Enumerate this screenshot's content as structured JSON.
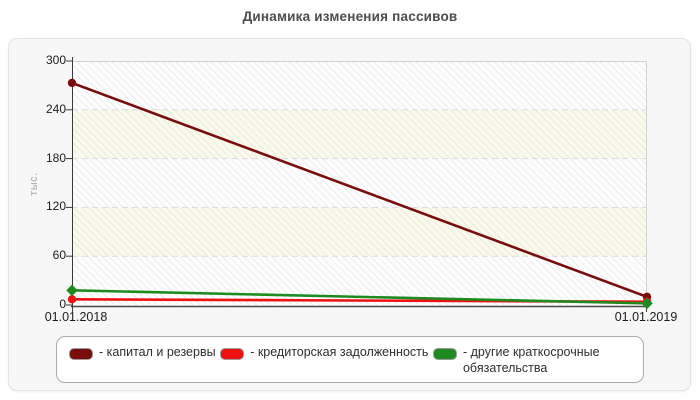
{
  "chart_data": {
    "type": "line",
    "title": "Динамика изменения пассивов",
    "ylabel": "тыс.",
    "xlabel": "",
    "x": [
      "01.01.2018",
      "01.01.2019"
    ],
    "ylim": [
      0,
      300
    ],
    "yticks": [
      0,
      60,
      120,
      180,
      240,
      300
    ],
    "grid": "horizontal-dashed",
    "legend_position": "bottom",
    "series": [
      {
        "name": "капитал и резервы",
        "values": [
          273,
          10
        ],
        "color": "#7b0c0c",
        "marker": "circle"
      },
      {
        "name": "кредиторская задолженность",
        "values": [
          7,
          4
        ],
        "color": "#ee1111",
        "marker": "circle"
      },
      {
        "name": "другие краткосрочные обязательства",
        "values": [
          18,
          2
        ],
        "color": "#1e8b1e",
        "marker": "diamond"
      }
    ]
  },
  "legend": {
    "items": [
      {
        "label": "- капитал и резервы"
      },
      {
        "label": "- кредиторская задолженность"
      },
      {
        "label": "- другие краткосрочные обязательства"
      }
    ]
  },
  "colors": {
    "panel_bg": "#f7f7f7",
    "band_white": "#fdfdfe",
    "band_cream": "#fafaeb",
    "grid": "#d9d9d9",
    "axis": "#3a3a3a"
  }
}
